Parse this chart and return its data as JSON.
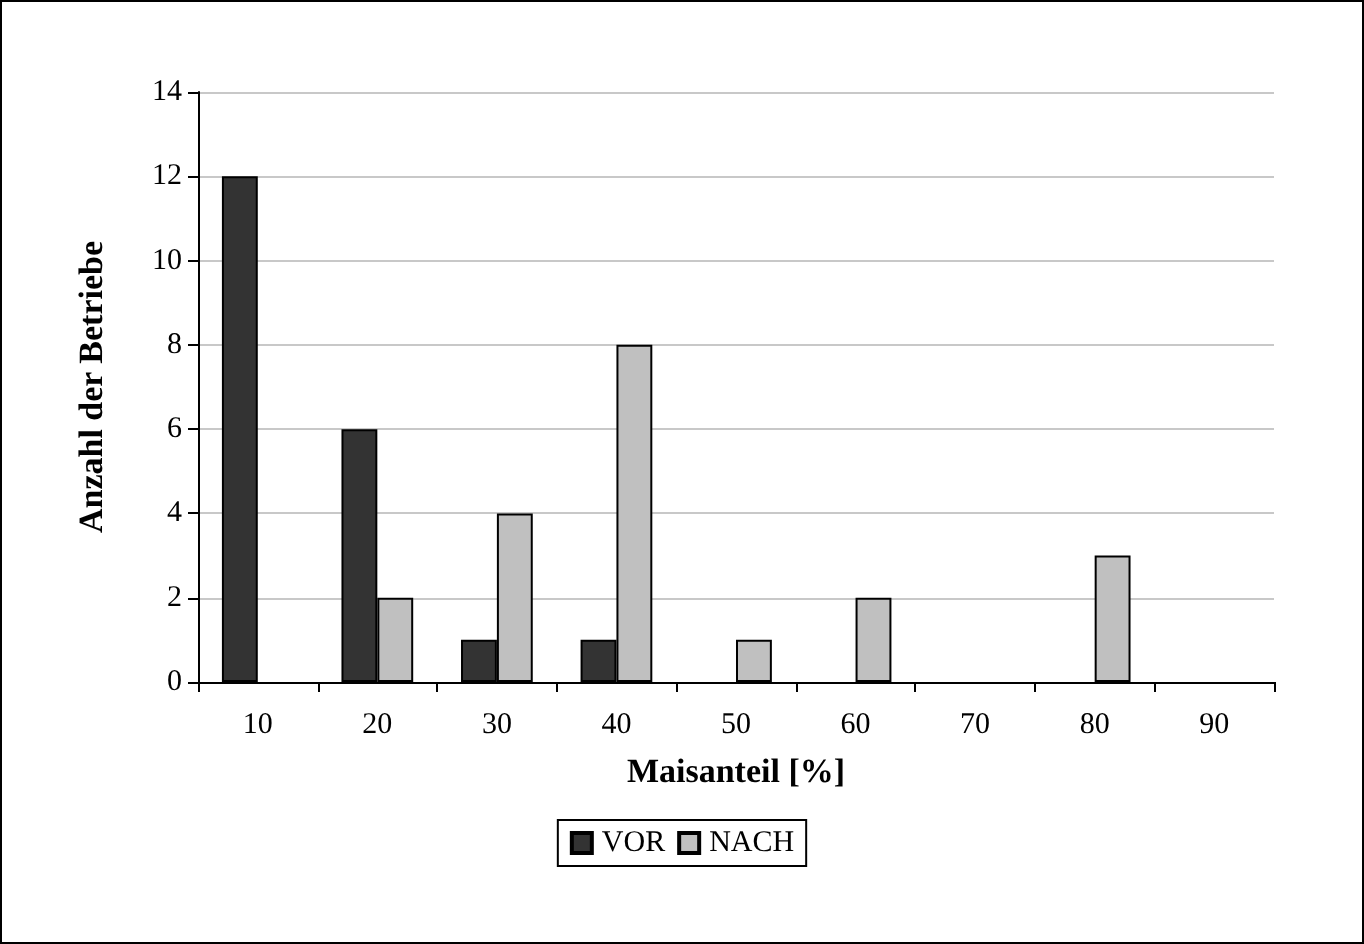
{
  "chart_data": {
    "type": "bar",
    "xlabel": "Maisanteil [%]",
    "ylabel": "Anzahl der Betriebe",
    "categories": [
      "10",
      "20",
      "30",
      "40",
      "50",
      "60",
      "70",
      "80",
      "90"
    ],
    "series": [
      {
        "name": "VOR",
        "color": "#333333",
        "values": [
          12,
          6,
          1,
          1,
          0,
          0,
          0,
          0,
          0
        ]
      },
      {
        "name": "NACH",
        "color": "#c0c0c0",
        "values": [
          0,
          2,
          4,
          8,
          1,
          2,
          0,
          3,
          0
        ]
      }
    ],
    "ylim": [
      0,
      14
    ],
    "yticks": [
      0,
      2,
      4,
      6,
      8,
      10,
      12,
      14
    ],
    "grid": "y",
    "legend": "bottom"
  }
}
